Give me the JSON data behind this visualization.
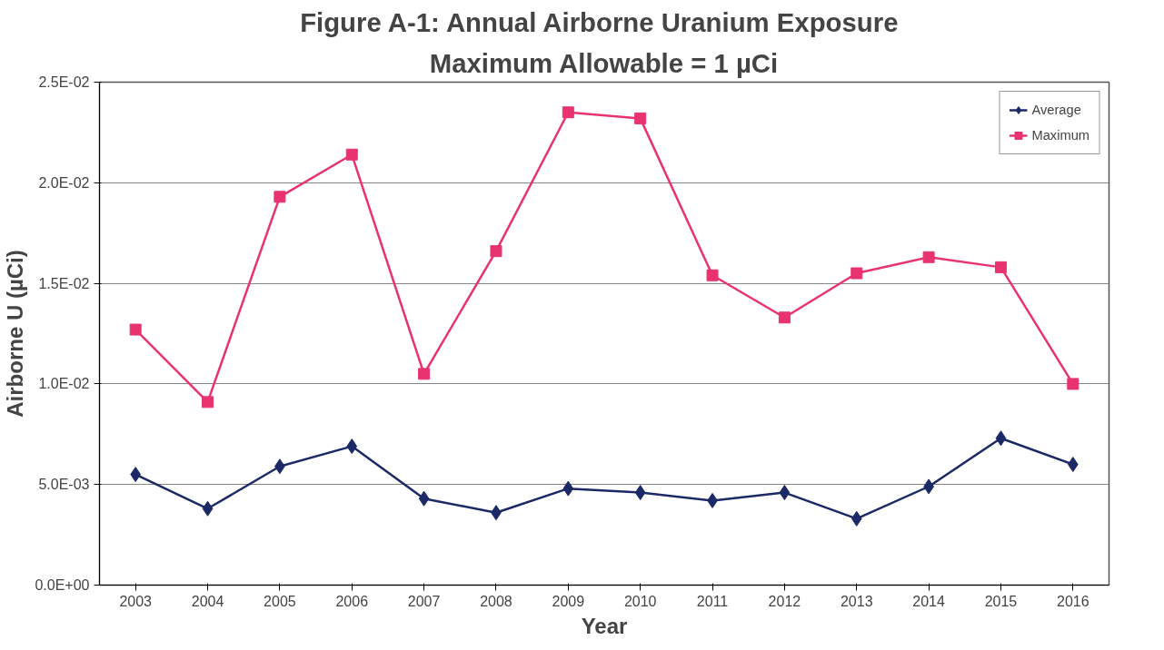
{
  "chart_data": {
    "type": "line",
    "title": "Figure A-1:  Annual Airborne Uranium Exposure",
    "subtitle": "Maximum Allowable = 1 µCi",
    "xlabel": "Year",
    "ylabel": "Airborne U (µCi)",
    "categories": [
      "2003",
      "2004",
      "2005",
      "2006",
      "2007",
      "2008",
      "2009",
      "2010",
      "2011",
      "2012",
      "2013",
      "2014",
      "2015",
      "2016"
    ],
    "series": [
      {
        "name": "Average",
        "color": "#1b2a66",
        "marker": "diamond",
        "values": [
          0.0055,
          0.0038,
          0.0059,
          0.0069,
          0.0043,
          0.0036,
          0.0048,
          0.0046,
          0.0042,
          0.0046,
          0.0033,
          0.0049,
          0.0073,
          0.006
        ]
      },
      {
        "name": "Maximum",
        "color": "#e8336e",
        "marker": "square",
        "values": [
          0.0127,
          0.0091,
          0.0193,
          0.0214,
          0.0105,
          0.0166,
          0.0235,
          0.0232,
          0.0154,
          0.0133,
          0.0155,
          0.0163,
          0.0158,
          0.01
        ]
      }
    ],
    "ylim": [
      0,
      0.025
    ],
    "yticks": [
      {
        "value": 0,
        "label": "0.0E+00"
      },
      {
        "value": 0.005,
        "label": "5.0E-03"
      },
      {
        "value": 0.01,
        "label": "1.0E-02"
      },
      {
        "value": 0.015,
        "label": "1.5E-02"
      },
      {
        "value": 0.02,
        "label": "2.0E-02"
      },
      {
        "value": 0.025,
        "label": "2.5E-02"
      }
    ],
    "grid": "y",
    "legend": "top right",
    "line_style": "solid"
  }
}
